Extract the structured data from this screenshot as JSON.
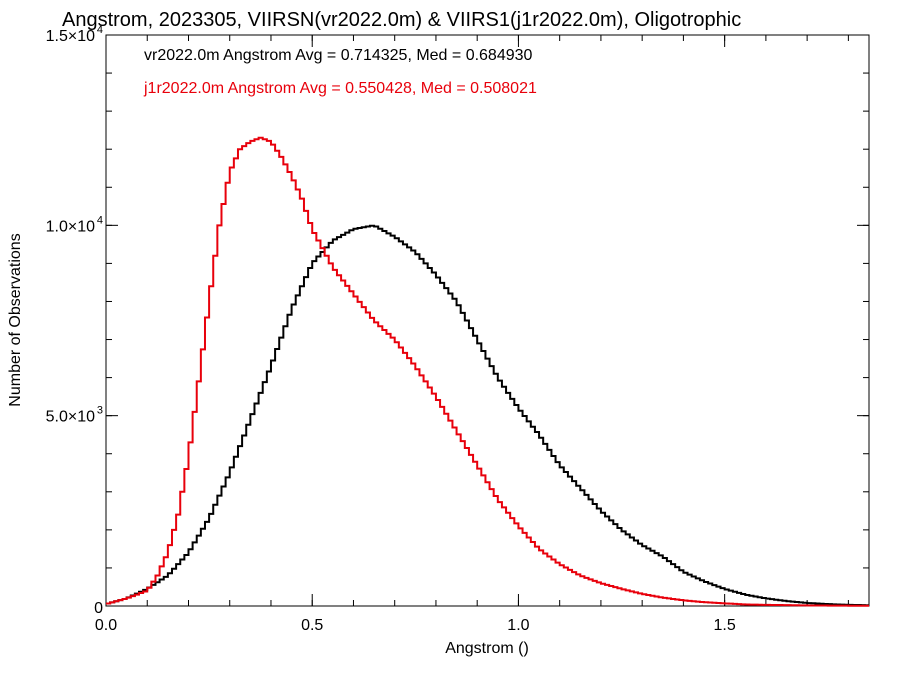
{
  "chart_data": {
    "type": "line",
    "step": true,
    "title": "Angstrom, 2023305, VIIRSN(vr2022.0m) & VIIRS1(j1r2022.0m), Oligotrophic",
    "xlabel": "Angstrom ()",
    "ylabel": "Number of Observations",
    "xlim": [
      0.0,
      1.85
    ],
    "ylim": [
      0,
      15000
    ],
    "grid": false,
    "x_ticks": [
      {
        "value": 0.0,
        "label": "0.0"
      },
      {
        "value": 0.5,
        "label": "0.5"
      },
      {
        "value": 1.0,
        "label": "1.0"
      },
      {
        "value": 1.5,
        "label": "1.5"
      }
    ],
    "y_ticks": [
      {
        "value": 0,
        "label": "0",
        "exp": ""
      },
      {
        "value": 5000,
        "label": "5.0×10",
        "exp": "3"
      },
      {
        "value": 10000,
        "label": "1.0×10",
        "exp": "4"
      },
      {
        "value": 15000,
        "label": "1.5×10",
        "exp": "4"
      }
    ],
    "x_minor_step": 0.1,
    "y_minor_step": 1000,
    "series": [
      {
        "name": "vr2022.0m",
        "color": "#000000",
        "annotation": "vr2022.0m Angstrom Avg = 0.714325, Med = 0.684930",
        "x": [
          0.0,
          0.05,
          0.1,
          0.15,
          0.2,
          0.25,
          0.3,
          0.35,
          0.4,
          0.45,
          0.5,
          0.55,
          0.6,
          0.65,
          0.7,
          0.75,
          0.8,
          0.85,
          0.9,
          0.95,
          1.0,
          1.05,
          1.1,
          1.15,
          1.2,
          1.25,
          1.3,
          1.35,
          1.4,
          1.45,
          1.5,
          1.55,
          1.6,
          1.65,
          1.7,
          1.75,
          1.8,
          1.85
        ],
        "y": [
          50,
          200,
          450,
          800,
          1400,
          2300,
          3500,
          4900,
          6300,
          7800,
          9000,
          9600,
          9900,
          10000,
          9700,
          9300,
          8700,
          8000,
          7000,
          6000,
          5200,
          4500,
          3700,
          3100,
          2500,
          2000,
          1600,
          1300,
          900,
          650,
          450,
          300,
          200,
          130,
          80,
          50,
          30,
          20
        ]
      },
      {
        "name": "j1r2022.0m",
        "color": "#e8000b",
        "annotation": "j1r2022.0m Angstrom Avg = 0.550428, Med = 0.508021",
        "x": [
          0.0,
          0.05,
          0.1,
          0.125,
          0.15,
          0.175,
          0.2,
          0.225,
          0.25,
          0.275,
          0.3,
          0.325,
          0.35,
          0.375,
          0.4,
          0.425,
          0.45,
          0.475,
          0.5,
          0.525,
          0.55,
          0.6,
          0.65,
          0.7,
          0.75,
          0.8,
          0.85,
          0.9,
          0.95,
          1.0,
          1.05,
          1.1,
          1.15,
          1.2,
          1.25,
          1.3,
          1.35,
          1.4,
          1.45,
          1.5,
          1.55,
          1.6,
          1.7,
          1.85
        ],
        "y": [
          50,
          200,
          400,
          800,
          1400,
          2400,
          3900,
          5900,
          8000,
          10000,
          11400,
          12000,
          12200,
          12300,
          12200,
          11800,
          11300,
          10700,
          9900,
          9400,
          8900,
          8200,
          7500,
          7000,
          6300,
          5500,
          4600,
          3700,
          2800,
          2100,
          1500,
          1100,
          800,
          600,
          450,
          320,
          220,
          150,
          100,
          70,
          40,
          30,
          15,
          5
        ]
      }
    ]
  }
}
